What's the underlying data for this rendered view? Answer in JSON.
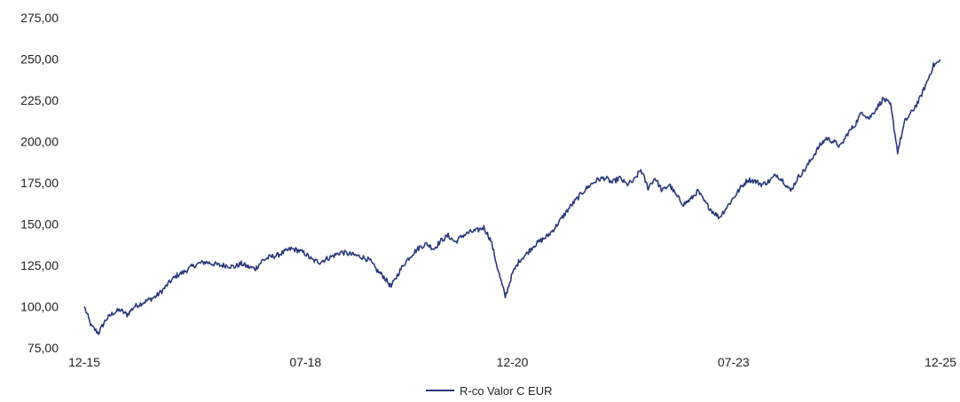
{
  "chart_data": {
    "type": "line",
    "title": "",
    "xlabel": "",
    "ylabel": "",
    "ylim": [
      75,
      275
    ],
    "yticks": [
      "75,00",
      "100,00",
      "125,00",
      "150,00",
      "175,00",
      "200,00",
      "225,00",
      "250,00",
      "275,00"
    ],
    "ytick_values": [
      75,
      100,
      125,
      150,
      175,
      200,
      225,
      250,
      275
    ],
    "xlim": [
      "2015-12",
      "2025-12"
    ],
    "xticks": [
      "12-15",
      "07-18",
      "12-20",
      "07-23",
      "12-25"
    ],
    "xtick_dates": [
      "2015-12",
      "2018-07",
      "2020-12",
      "2023-07",
      "2025-12"
    ],
    "grid": false,
    "legend_position": "bottom-center",
    "series": [
      {
        "name": "R-co Valor C EUR",
        "color": "#2b3a7a",
        "points": [
          [
            "2015-12",
            100
          ],
          [
            "2016-01",
            88
          ],
          [
            "2016-02",
            84
          ],
          [
            "2016-03",
            92
          ],
          [
            "2016-04",
            96
          ],
          [
            "2016-05",
            98
          ],
          [
            "2016-06",
            95
          ],
          [
            "2016-07",
            100
          ],
          [
            "2016-08",
            102
          ],
          [
            "2016-09",
            104
          ],
          [
            "2016-10",
            106
          ],
          [
            "2016-11",
            110
          ],
          [
            "2016-12",
            115
          ],
          [
            "2017-01",
            119
          ],
          [
            "2017-02",
            121
          ],
          [
            "2017-03",
            124
          ],
          [
            "2017-04",
            126
          ],
          [
            "2017-05",
            127
          ],
          [
            "2017-06",
            126
          ],
          [
            "2017-07",
            125
          ],
          [
            "2017-08",
            125
          ],
          [
            "2017-09",
            124
          ],
          [
            "2017-10",
            126
          ],
          [
            "2017-11",
            124
          ],
          [
            "2017-12",
            123
          ],
          [
            "2018-01",
            128
          ],
          [
            "2018-02",
            130
          ],
          [
            "2018-03",
            131
          ],
          [
            "2018-04",
            133
          ],
          [
            "2018-05",
            135
          ],
          [
            "2018-06",
            134
          ],
          [
            "2018-07",
            132
          ],
          [
            "2018-08",
            128
          ],
          [
            "2018-09",
            127
          ],
          [
            "2018-10",
            129
          ],
          [
            "2018-11",
            131
          ],
          [
            "2018-12",
            133
          ],
          [
            "2019-01",
            132
          ],
          [
            "2019-02",
            131
          ],
          [
            "2019-03",
            130
          ],
          [
            "2019-04",
            128
          ],
          [
            "2019-05",
            122
          ],
          [
            "2019-06",
            118
          ],
          [
            "2019-07",
            112
          ],
          [
            "2019-08",
            120
          ],
          [
            "2019-09",
            127
          ],
          [
            "2019-10",
            132
          ],
          [
            "2019-11",
            136
          ],
          [
            "2019-12",
            138
          ],
          [
            "2020-01",
            135
          ],
          [
            "2020-02",
            140
          ],
          [
            "2020-03",
            143
          ],
          [
            "2020-04",
            139
          ],
          [
            "2020-05",
            143
          ],
          [
            "2020-06",
            145
          ],
          [
            "2020-07",
            146
          ],
          [
            "2020-08",
            148
          ],
          [
            "2020-09",
            140
          ],
          [
            "2020-10",
            122
          ],
          [
            "2020-11",
            106
          ],
          [
            "2020-12",
            120
          ],
          [
            "2021-01",
            128
          ],
          [
            "2021-02",
            132
          ],
          [
            "2021-03",
            137
          ],
          [
            "2021-04",
            140
          ],
          [
            "2021-05",
            143
          ],
          [
            "2021-06",
            148
          ],
          [
            "2021-07",
            154
          ],
          [
            "2021-08",
            160
          ],
          [
            "2021-09",
            165
          ],
          [
            "2021-10",
            170
          ],
          [
            "2021-11",
            174
          ],
          [
            "2021-12",
            177
          ],
          [
            "2022-01",
            178
          ],
          [
            "2022-02",
            175
          ],
          [
            "2022-03",
            178
          ],
          [
            "2022-04",
            174
          ],
          [
            "2022-05",
            176
          ],
          [
            "2022-06",
            183
          ],
          [
            "2022-07",
            172
          ],
          [
            "2022-08",
            178
          ],
          [
            "2022-09",
            170
          ],
          [
            "2022-10",
            174
          ],
          [
            "2022-11",
            167
          ],
          [
            "2022-12",
            162
          ],
          [
            "2023-01",
            165
          ],
          [
            "2023-02",
            170
          ],
          [
            "2023-03",
            163
          ],
          [
            "2023-04",
            158
          ],
          [
            "2023-05",
            154
          ],
          [
            "2023-06",
            160
          ],
          [
            "2023-07",
            166
          ],
          [
            "2023-08",
            172
          ],
          [
            "2023-09",
            177
          ],
          [
            "2023-10",
            176
          ],
          [
            "2023-11",
            174
          ],
          [
            "2023-12",
            176
          ],
          [
            "2024-01",
            180
          ],
          [
            "2024-02",
            176
          ],
          [
            "2024-03",
            170
          ],
          [
            "2024-04",
            178
          ],
          [
            "2024-05",
            183
          ],
          [
            "2024-06",
            190
          ],
          [
            "2024-07",
            197
          ],
          [
            "2024-08",
            202
          ],
          [
            "2024-09",
            200
          ],
          [
            "2024-10",
            197
          ],
          [
            "2024-11",
            205
          ],
          [
            "2024-12",
            210
          ],
          [
            "2025-01",
            218
          ],
          [
            "2025-02",
            214
          ],
          [
            "2025-03",
            220
          ],
          [
            "2025-04",
            226
          ],
          [
            "2025-05",
            222
          ],
          [
            "2025-06",
            194
          ],
          [
            "2025-07",
            212
          ],
          [
            "2025-08",
            218
          ],
          [
            "2025-09",
            225
          ],
          [
            "2025-10",
            235
          ],
          [
            "2025-11",
            246
          ],
          [
            "2025-12",
            249
          ]
        ]
      }
    ]
  }
}
